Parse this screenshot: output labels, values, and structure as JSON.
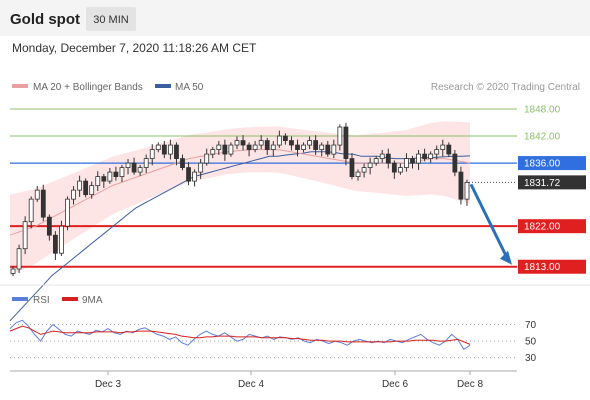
{
  "header": {
    "title": "Gold spot",
    "interval": "30 MIN",
    "timestamp": "Monday, December 7, 2020 11:18:26 AM CET"
  },
  "legend": {
    "ma20": "MA 20 + Bollinger Bands",
    "ma50": "MA 50",
    "copyright": "Research © 2020 Trading Central",
    "rsi": "RSI",
    "ma9": "9MA"
  },
  "colors": {
    "background": "#ffffff",
    "band_fill": "#fde2e2",
    "ma20": "#e8a0a0",
    "ma50": "#3a5f9e",
    "resistance": "#8dc06a",
    "pivot": "#2f6fe0",
    "support": "#e02020",
    "current": "#333333",
    "arrow": "#2a6fba",
    "rsi": "#5b7fd8",
    "ma9": "#d62020",
    "candle": "#333333"
  },
  "chart_data": [
    {
      "type": "candlestick",
      "x_labels": [
        "Dec 3",
        "Dec 4",
        "Dec 6",
        "Dec 8"
      ],
      "ylim": [
        1810.5,
        1850
      ],
      "levels": [
        {
          "value": 1848.0,
          "label": "1848.00",
          "kind": "resistance"
        },
        {
          "value": 1842.0,
          "label": "1842.00",
          "kind": "resistance"
        },
        {
          "value": 1836.0,
          "label": "1836.00",
          "kind": "pivot"
        },
        {
          "value": 1831.72,
          "label": "1831.72",
          "kind": "current"
        },
        {
          "value": 1822.0,
          "label": "1822.00",
          "kind": "support"
        },
        {
          "value": 1813.0,
          "label": "1813.00",
          "kind": "support"
        }
      ],
      "close": [
        1812.5,
        1817,
        1823,
        1828,
        1830,
        1824,
        1820,
        1816,
        1822,
        1828,
        1830,
        1832,
        1829,
        1831,
        1833,
        1832,
        1834,
        1833,
        1835,
        1836,
        1834,
        1835,
        1837,
        1839,
        1840,
        1838,
        1840,
        1837,
        1835,
        1832,
        1834,
        1836,
        1838,
        1839,
        1840,
        1838,
        1840,
        1841,
        1840,
        1839,
        1840,
        1841,
        1839,
        1840,
        1842,
        1841,
        1840,
        1839,
        1840,
        1841,
        1839,
        1840,
        1838,
        1840,
        1844,
        1837,
        1833,
        1834,
        1835,
        1836,
        1837,
        1838,
        1836,
        1834,
        1835,
        1837,
        1836,
        1838,
        1837,
        1838,
        1839,
        1840,
        1838,
        1834,
        1828,
        1831.72
      ],
      "ma50": [
        1801,
        1803,
        1805,
        1807,
        1809,
        1811,
        1812.5,
        1814,
        1815.5,
        1817,
        1818.5,
        1820,
        1821.5,
        1823,
        1824.5,
        1826,
        1827,
        1828,
        1829,
        1830,
        1831,
        1832,
        1833,
        1833.5,
        1834,
        1834.5,
        1835,
        1835.5,
        1836,
        1836.5,
        1837,
        1837.5,
        1837.5,
        1837.8,
        1838,
        1838.2,
        1838.5,
        1838.5,
        1838.5,
        1838.3,
        1838,
        1838,
        1837.5,
        1837.5,
        1837.5,
        1837.2,
        1837,
        1837,
        1837,
        1837.2,
        1837.2,
        1837.3,
        1837.4,
        1837.5,
        1837.5,
        1837.6
      ],
      "ma20": [
        1820,
        1821,
        1822,
        1823.5,
        1825,
        1826.5,
        1828,
        1829.5,
        1831,
        1832,
        1833,
        1834,
        1835,
        1836,
        1837,
        1837.5,
        1838,
        1838.5,
        1838.8,
        1839,
        1839,
        1839,
        1838.5,
        1838,
        1837.5,
        1837,
        1836.5,
        1836,
        1836,
        1836,
        1836,
        1836,
        1836.5,
        1837,
        1837,
        1836.5,
        1836
      ]
    },
    {
      "type": "line",
      "title": "RSI",
      "yticks": [
        70,
        50,
        30
      ],
      "ylim": [
        20,
        85
      ],
      "series": [
        {
          "name": "RSI",
          "values": [
            65,
            72,
            75,
            68,
            58,
            50,
            62,
            70,
            64,
            58,
            56,
            62,
            60,
            58,
            63,
            61,
            65,
            60,
            58,
            62,
            60,
            64,
            66,
            62,
            58,
            56,
            52,
            55,
            48,
            45,
            52,
            58,
            62,
            58,
            56,
            60,
            55,
            50,
            52,
            58,
            56,
            54,
            56,
            52,
            55,
            54,
            52,
            54,
            50,
            48,
            52,
            50,
            47,
            50,
            48,
            45,
            50,
            52,
            50,
            48,
            50,
            48,
            52,
            50,
            48,
            52,
            55,
            58,
            52,
            48,
            45,
            50,
            58,
            52,
            40,
            45
          ]
        },
        {
          "name": "9MA",
          "values": [
            62,
            65,
            68,
            66,
            62,
            58,
            60,
            62,
            61,
            60,
            60,
            60,
            60,
            60,
            61,
            61,
            61,
            61,
            60,
            61,
            61,
            62,
            62,
            62,
            61,
            60,
            59,
            58,
            56,
            55,
            54,
            54,
            55,
            55,
            56,
            56,
            56,
            55,
            55,
            55,
            55,
            54,
            54,
            54,
            54,
            54,
            53,
            53,
            52,
            51,
            51,
            51,
            50,
            50,
            50,
            49,
            49,
            49,
            49,
            49,
            49,
            49,
            49,
            50,
            50,
            50,
            51,
            51,
            51,
            51,
            50,
            50,
            51,
            52,
            49,
            46
          ]
        }
      ]
    }
  ]
}
